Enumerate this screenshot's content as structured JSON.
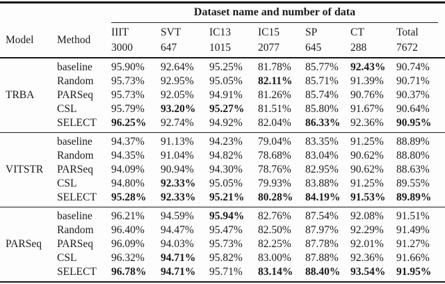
{
  "table": {
    "group_header": "Dataset name and number of data",
    "model_header": "Model",
    "method_header": "Method",
    "columns": [
      {
        "name": "IIIT",
        "count": "3000"
      },
      {
        "name": "SVT",
        "count": "647"
      },
      {
        "name": "IC13",
        "count": "1015"
      },
      {
        "name": "IC15",
        "count": "2077"
      },
      {
        "name": "SP",
        "count": "645"
      },
      {
        "name": "CT",
        "count": "288"
      },
      {
        "name": "Total",
        "count": "7672"
      }
    ],
    "sections": [
      {
        "model": "TRBA",
        "rows": [
          {
            "method": "baseline",
            "values": [
              "95.90%",
              "92.64%",
              "95.25%",
              "81.78%",
              "85.77%",
              "92.43%",
              "90.74%"
            ],
            "bold": [
              0,
              0,
              0,
              0,
              0,
              1,
              0
            ]
          },
          {
            "method": "Random",
            "values": [
              "95.73%",
              "92.95%",
              "95.05%",
              "82.11%",
              "85.71%",
              "91.39%",
              "90.71%"
            ],
            "bold": [
              0,
              0,
              0,
              1,
              0,
              0,
              0
            ]
          },
          {
            "method": "PARSeq",
            "values": [
              "95.73%",
              "92.05%",
              "94.91%",
              "81.26%",
              "85.74%",
              "90.76%",
              "90.37%"
            ],
            "bold": [
              0,
              0,
              0,
              0,
              0,
              0,
              0
            ]
          },
          {
            "method": "CSL",
            "values": [
              "95.79%",
              "93.20%",
              "95.27%",
              "81.51%",
              "85.80%",
              "91.67%",
              "90.64%"
            ],
            "bold": [
              0,
              1,
              1,
              0,
              0,
              0,
              0
            ]
          },
          {
            "method": "SELECT",
            "values": [
              "96.25%",
              "92.74%",
              "94.92%",
              "82.04%",
              "86.33%",
              "92.36%",
              "90.95%"
            ],
            "bold": [
              1,
              0,
              0,
              0,
              1,
              0,
              1
            ]
          }
        ]
      },
      {
        "model": "VITSTR",
        "rows": [
          {
            "method": "baseline",
            "values": [
              "94.37%",
              "91.13%",
              "94.23%",
              "79.04%",
              "83.35%",
              "91.25%",
              "88.89%"
            ],
            "bold": [
              0,
              0,
              0,
              0,
              0,
              0,
              0
            ]
          },
          {
            "method": "Random",
            "values": [
              "94.35%",
              "91.04%",
              "94.82%",
              "78.68%",
              "83.04%",
              "90.62%",
              "88.80%"
            ],
            "bold": [
              0,
              0,
              0,
              0,
              0,
              0,
              0
            ]
          },
          {
            "method": "PARSeq",
            "values": [
              "94.09%",
              "90.94%",
              "94.30%",
              "78.76%",
              "82.95%",
              "90.62%",
              "88.63%"
            ],
            "bold": [
              0,
              0,
              0,
              0,
              0,
              0,
              0
            ]
          },
          {
            "method": "CSL",
            "values": [
              "94.80%",
              "92.33%",
              "95.05%",
              "79.93%",
              "83.88%",
              "91.25%",
              "89.55%"
            ],
            "bold": [
              0,
              1,
              0,
              0,
              0,
              0,
              0
            ]
          },
          {
            "method": "SELECT",
            "values": [
              "95.28%",
              "92.33%",
              "95.21%",
              "80.28%",
              "84.19%",
              "91.53%",
              "89.89%"
            ],
            "bold": [
              1,
              1,
              1,
              1,
              1,
              1,
              1
            ]
          }
        ]
      },
      {
        "model": "PARSeq",
        "rows": [
          {
            "method": "baseline",
            "values": [
              "96.21%",
              "94.59%",
              "95.94%",
              "82.76%",
              "87.54%",
              "92.08%",
              "91.51%"
            ],
            "bold": [
              0,
              0,
              1,
              0,
              0,
              0,
              0
            ]
          },
          {
            "method": "Random",
            "values": [
              "96.40%",
              "94.47%",
              "95.47%",
              "82.50%",
              "87.97%",
              "92.29%",
              "91.49%"
            ],
            "bold": [
              0,
              0,
              0,
              0,
              0,
              0,
              0
            ]
          },
          {
            "method": "PARSeq",
            "values": [
              "96.09%",
              "94.03%",
              "95.73%",
              "82.25%",
              "87.78%",
              "92.01%",
              "91.27%"
            ],
            "bold": [
              0,
              0,
              0,
              0,
              0,
              0,
              0
            ]
          },
          {
            "method": "CSL",
            "values": [
              "96.32%",
              "94.71%",
              "95.82%",
              "83.00%",
              "87.88%",
              "92.36%",
              "91.66%"
            ],
            "bold": [
              0,
              1,
              0,
              0,
              0,
              0,
              0
            ]
          },
          {
            "method": "SELECT",
            "values": [
              "96.78%",
              "94.71%",
              "95.71%",
              "83.14%",
              "88.40%",
              "93.54%",
              "91.95%"
            ],
            "bold": [
              1,
              1,
              0,
              1,
              1,
              1,
              1
            ]
          }
        ]
      }
    ]
  }
}
